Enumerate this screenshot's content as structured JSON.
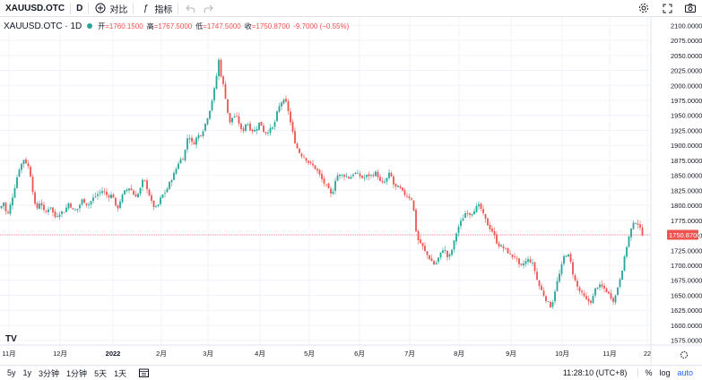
{
  "toolbar": {
    "symbol": "XAUUSD.OTC",
    "interval": "D",
    "compare_label": "对比",
    "indicators_label": "指标",
    "icons": [
      "plus-circle-icon",
      "fx-icon",
      "undo-icon",
      "redo-icon",
      "settings-icon",
      "fullscreen-icon",
      "camera-icon"
    ]
  },
  "legend": {
    "symbol": "XAUUSD.OTC · 1D",
    "open_label": "开",
    "open_value": "=1760.1500",
    "high_label": "高",
    "high_value": "=1767.5000",
    "low_label": "低",
    "low_value": "=1747.5000",
    "close_label": "收",
    "close_value": "=1750.8700",
    "change": "-9.7000 (−0.55%)"
  },
  "bottom": {
    "ranges": [
      "5y",
      "1y",
      "3分钟",
      "1分钟",
      "5天",
      "1天"
    ],
    "time": "11:28:10 (UTC+8)",
    "percent": "%",
    "log": "log",
    "auto": "auto"
  },
  "colors": {
    "up": "#26a69a",
    "down": "#ef5350",
    "grid": "#f0f3fa",
    "price_line": "#ef5350"
  },
  "chart_data": {
    "type": "candlestick",
    "title": "XAUUSD.OTC · 1D",
    "last_price": "1750.8700",
    "y_ticks": [
      "2100.0000",
      "2075.0000",
      "2050.0000",
      "2025.0000",
      "2000.0000",
      "1975.0000",
      "1950.0000",
      "1925.0000",
      "1900.0000",
      "1875.0000",
      "1850.0000",
      "1825.0000",
      "1800.0000",
      "1775.0000",
      "1750.0000",
      "1725.0000",
      "1700.0000",
      "1675.0000",
      "1650.0000",
      "1625.0000",
      "1600.0000",
      "1575.0000"
    ],
    "x_ticks": [
      "11月",
      "12月",
      "2022",
      "2月",
      "3月",
      "4月",
      "5月",
      "6月",
      "7月",
      "8月",
      "9月",
      "10月",
      "11月",
      "22"
    ],
    "ylim": [
      1567,
      2114
    ],
    "close_path": [
      [
        0,
        1795
      ],
      [
        4,
        1805
      ],
      [
        8,
        1780
      ],
      [
        14,
        1815
      ],
      [
        21,
        1860
      ],
      [
        27,
        1878
      ],
      [
        33,
        1860
      ],
      [
        40,
        1790
      ],
      [
        45,
        1808
      ],
      [
        50,
        1785
      ],
      [
        56,
        1800
      ],
      [
        61,
        1780
      ],
      [
        67,
        1788
      ],
      [
        72,
        1790
      ],
      [
        77,
        1805
      ],
      [
        82,
        1790
      ],
      [
        87,
        1795
      ],
      [
        92,
        1810
      ],
      [
        98,
        1800
      ],
      [
        104,
        1812
      ],
      [
        110,
        1820
      ],
      [
        115,
        1825
      ],
      [
        120,
        1815
      ],
      [
        126,
        1818
      ],
      [
        130,
        1790
      ],
      [
        135,
        1812
      ],
      [
        140,
        1825
      ],
      [
        145,
        1830
      ],
      [
        150,
        1815
      ],
      [
        155,
        1820
      ],
      [
        160,
        1845
      ],
      [
        165,
        1825
      ],
      [
        170,
        1800
      ],
      [
        175,
        1795
      ],
      [
        180,
        1815
      ],
      [
        185,
        1823
      ],
      [
        190,
        1840
      ],
      [
        195,
        1855
      ],
      [
        200,
        1875
      ],
      [
        205,
        1880
      ],
      [
        210,
        1920
      ],
      [
        215,
        1900
      ],
      [
        220,
        1915
      ],
      [
        225,
        1920
      ],
      [
        230,
        1940
      ],
      [
        235,
        1965
      ],
      [
        240,
        2000
      ],
      [
        244,
        2042
      ],
      [
        247,
        2012
      ],
      [
        250,
        1995
      ],
      [
        253,
        1965
      ],
      [
        256,
        1935
      ],
      [
        260,
        1950
      ],
      [
        265,
        1945
      ],
      [
        270,
        1920
      ],
      [
        275,
        1940
      ],
      [
        280,
        1925
      ],
      [
        285,
        1925
      ],
      [
        290,
        1940
      ],
      [
        295,
        1920
      ],
      [
        300,
        1925
      ],
      [
        305,
        1930
      ],
      [
        310,
        1960
      ],
      [
        315,
        1975
      ],
      [
        320,
        1970
      ],
      [
        325,
        1930
      ],
      [
        330,
        1900
      ],
      [
        335,
        1885
      ],
      [
        340,
        1880
      ],
      [
        345,
        1870
      ],
      [
        350,
        1865
      ],
      [
        355,
        1855
      ],
      [
        360,
        1840
      ],
      [
        365,
        1830
      ],
      [
        370,
        1815
      ],
      [
        375,
        1850
      ],
      [
        380,
        1850
      ],
      [
        385,
        1850
      ],
      [
        390,
        1845
      ],
      [
        395,
        1855
      ],
      [
        400,
        1850
      ],
      [
        405,
        1845
      ],
      [
        410,
        1850
      ],
      [
        415,
        1850
      ],
      [
        420,
        1855
      ],
      [
        425,
        1835
      ],
      [
        430,
        1840
      ],
      [
        435,
        1855
      ],
      [
        440,
        1830
      ],
      [
        445,
        1830
      ],
      [
        450,
        1820
      ],
      [
        455,
        1815
      ],
      [
        460,
        1810
      ],
      [
        465,
        1745
      ],
      [
        470,
        1735
      ],
      [
        475,
        1720
      ],
      [
        480,
        1710
      ],
      [
        485,
        1700
      ],
      [
        490,
        1715
      ],
      [
        495,
        1730
      ],
      [
        500,
        1710
      ],
      [
        505,
        1730
      ],
      [
        510,
        1760
      ],
      [
        515,
        1775
      ],
      [
        520,
        1790
      ],
      [
        525,
        1785
      ],
      [
        530,
        1795
      ],
      [
        535,
        1800
      ],
      [
        540,
        1780
      ],
      [
        545,
        1765
      ],
      [
        550,
        1755
      ],
      [
        555,
        1735
      ],
      [
        560,
        1730
      ],
      [
        565,
        1725
      ],
      [
        570,
        1715
      ],
      [
        575,
        1715
      ],
      [
        580,
        1695
      ],
      [
        585,
        1705
      ],
      [
        590,
        1710
      ],
      [
        595,
        1700
      ],
      [
        600,
        1670
      ],
      [
        605,
        1655
      ],
      [
        610,
        1640
      ],
      [
        615,
        1630
      ],
      [
        620,
        1665
      ],
      [
        625,
        1690
      ],
      [
        630,
        1720
      ],
      [
        635,
        1715
      ],
      [
        640,
        1680
      ],
      [
        645,
        1660
      ],
      [
        650,
        1650
      ],
      [
        655,
        1640
      ],
      [
        660,
        1640
      ],
      [
        665,
        1665
      ],
      [
        670,
        1665
      ],
      [
        675,
        1660
      ],
      [
        680,
        1650
      ],
      [
        685,
        1640
      ],
      [
        690,
        1670
      ],
      [
        695,
        1700
      ],
      [
        700,
        1740
      ],
      [
        705,
        1765
      ],
      [
        710,
        1775
      ],
      [
        714,
        1760
      ],
      [
        717,
        1751
      ]
    ]
  }
}
